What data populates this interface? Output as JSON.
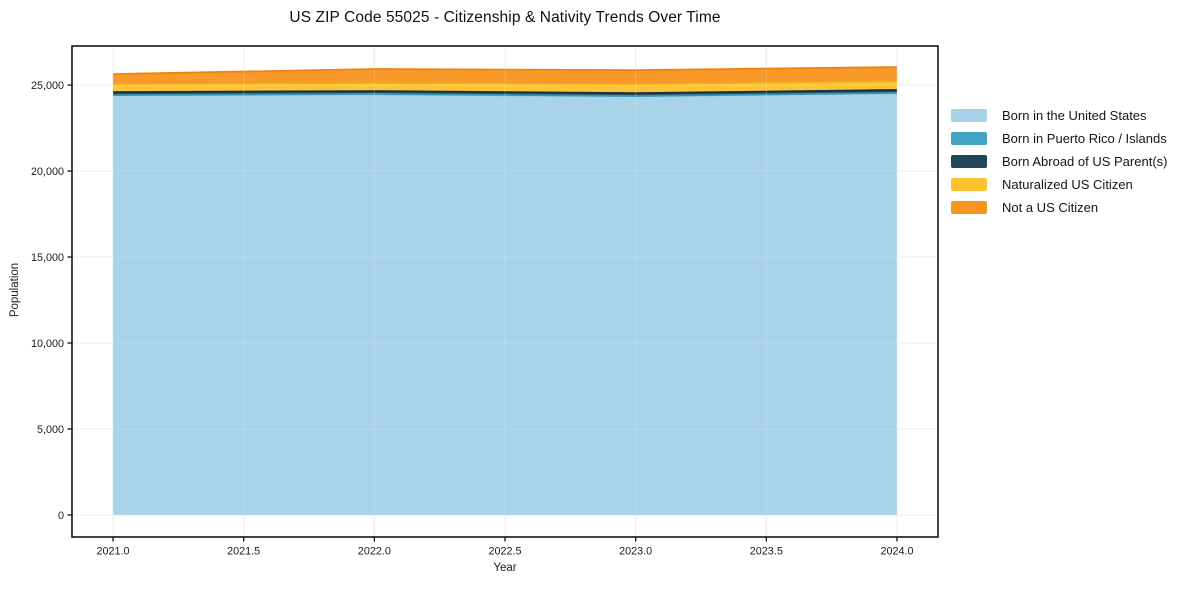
{
  "chart_data": {
    "type": "area",
    "stacked": true,
    "title": "US ZIP Code 55025 - Citizenship & Nativity Trends Over Time",
    "xlabel": "Year",
    "ylabel": "Population",
    "x": [
      2021,
      2022,
      2023,
      2024
    ],
    "series": [
      {
        "name": "Born in the United States",
        "color": "#a6d1e8",
        "edge_color": "#90c4de",
        "values": [
          24400,
          24460,
          24340,
          24520
        ]
      },
      {
        "name": "Born in Puerto Rico / Islands",
        "color": "#41a3c0",
        "edge_color": "#3595b2",
        "values": [
          20,
          25,
          25,
          25
        ]
      },
      {
        "name": "Born Abroad of US Parent(s)",
        "color": "#214559",
        "edge_color": "#16303f",
        "values": [
          170,
          165,
          170,
          170
        ]
      },
      {
        "name": "Naturalized US Citizen",
        "color": "#fcc22f",
        "edge_color": "#efae15",
        "values": [
          470,
          475,
          520,
          520
        ]
      },
      {
        "name": "Not a US Citizen",
        "color": "#f89521",
        "edge_color": "#ef830f",
        "values": [
          580,
          810,
          810,
          810
        ]
      }
    ],
    "xticks": [
      2021.0,
      2021.5,
      2022.0,
      2022.5,
      2023.0,
      2023.5,
      2024.0
    ],
    "xtick_labels": [
      "2021.0",
      "2021.5",
      "2022.0",
      "2022.5",
      "2023.0",
      "2023.5",
      "2024.0"
    ],
    "yticks": [
      0,
      5000,
      10000,
      15000,
      20000,
      25000
    ],
    "ytick_labels": [
      "0",
      "5,000",
      "10,000",
      "15,000",
      "20,000",
      "25,000"
    ],
    "xlim": [
      2020.843,
      2024.157
    ],
    "ylim": [
      -1282,
      27273
    ],
    "grid": true,
    "grid_color": "#e7e7e7",
    "spine_color": "#141414",
    "legend_position": "right",
    "background_color": "#ffffff"
  }
}
